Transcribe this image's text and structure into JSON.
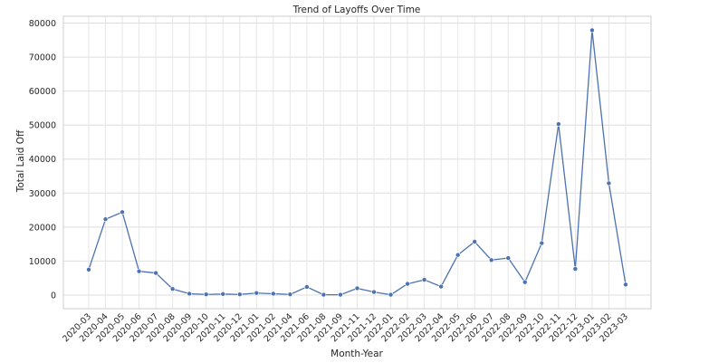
{
  "chart_data": {
    "type": "line",
    "title": "Trend of Layoffs Over Time",
    "xlabel": "Month-Year",
    "ylabel": "Total Laid Off",
    "x": [
      "2020-03",
      "2020-04",
      "2020-05",
      "2020-06",
      "2020-07",
      "2020-08",
      "2020-09",
      "2020-10",
      "2020-11",
      "2020-12",
      "2021-01",
      "2021-02",
      "2021-04",
      "2021-06",
      "2021-08",
      "2021-09",
      "2021-11",
      "2021-12",
      "2022-01",
      "2022-02",
      "2022-03",
      "2022-04",
      "2022-05",
      "2022-06",
      "2022-07",
      "2022-08",
      "2022-09",
      "2022-10",
      "2022-11",
      "2022-12",
      "2023-01",
      "2023-02",
      "2023-03"
    ],
    "series": [
      {
        "values": [
          7500,
          22300,
          24400,
          7000,
          6500,
          1800,
          400,
          200,
          300,
          200,
          600,
          400,
          200,
          2400,
          100,
          100,
          2000,
          900,
          100,
          3300,
          4500,
          2500,
          11800,
          15700,
          10300,
          10900,
          3800,
          15300,
          50300,
          7700,
          77900,
          32900,
          3100
        ],
        "color": "#4c72b0"
      }
    ],
    "ylim": [
      -4000,
      82000
    ],
    "yticks": [
      0,
      10000,
      20000,
      30000,
      40000,
      50000,
      60000,
      70000,
      80000
    ],
    "grid": true
  }
}
